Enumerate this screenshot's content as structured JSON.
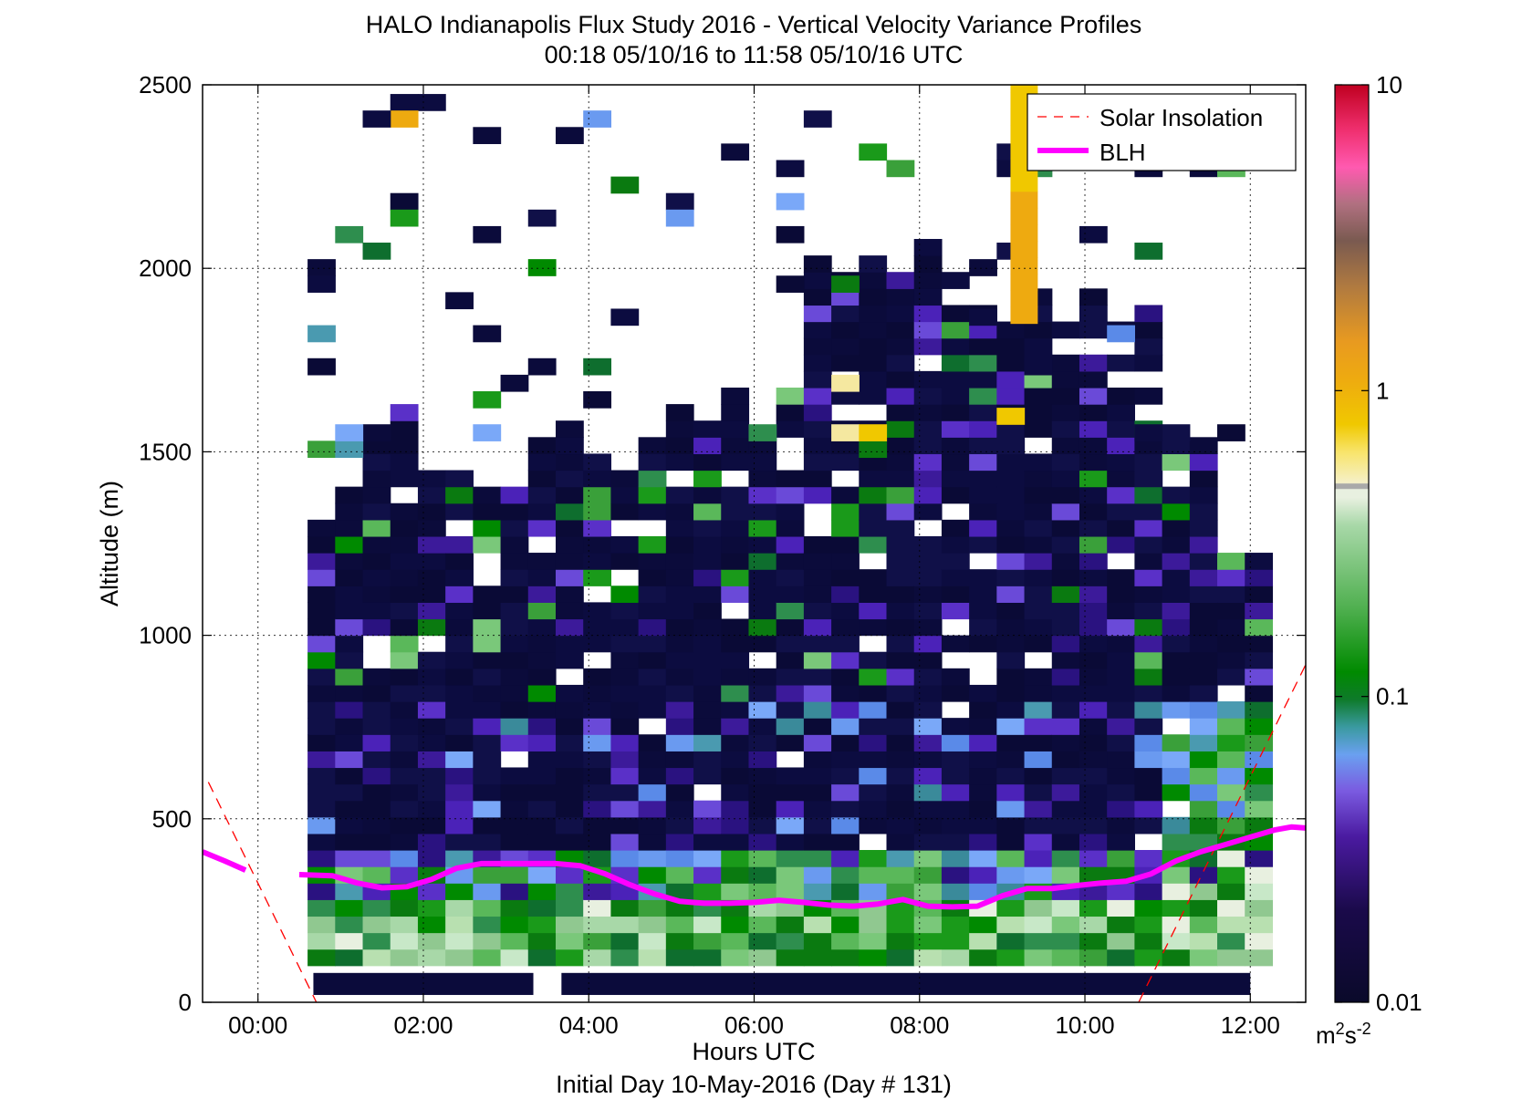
{
  "chart_data": {
    "type": "heatmap",
    "title": "HALO Indianapolis Flux Study 2016 - Vertical Velocity Variance Profiles",
    "subtitle": "00:18 05/10/16 to 11:58 05/10/16  UTC",
    "xlabel": "Hours UTC",
    "xlabel2": "Initial Day 10-May-2016 (Day # 131)",
    "ylabel": "Altitude (m)",
    "xlim": [
      -0.67,
      12.67
    ],
    "ylim": [
      0,
      2500
    ],
    "x_ticks": [
      0,
      2,
      4,
      6,
      8,
      10,
      12
    ],
    "x_tick_labels": [
      "00:00",
      "02:00",
      "04:00",
      "06:00",
      "08:00",
      "10:00",
      "12:00"
    ],
    "y_ticks": [
      0,
      500,
      1000,
      1500,
      2000,
      2500
    ],
    "y_tick_labels": [
      "0",
      "500",
      "1000",
      "1500",
      "2000",
      "2500"
    ],
    "grid": true,
    "legend": {
      "placement": "top-right",
      "entries": [
        {
          "label": "Solar Insolation",
          "color": "#ff0000",
          "style": "dashed"
        },
        {
          "label": "BLH",
          "color": "#ff00ff",
          "style": "solid-thick"
        }
      ]
    },
    "colorbar": {
      "scale": "log",
      "min": 0.01,
      "max": 10,
      "tick_values": [
        0.01,
        0.1,
        1,
        10
      ],
      "tick_labels": [
        "0.01",
        "0.1",
        "1",
        "10"
      ],
      "units": "m²s⁻²"
    },
    "blh": {
      "x": [
        -0.67,
        -0.4,
        -0.15,
        0.5,
        0.9,
        1.2,
        1.5,
        1.8,
        2.1,
        2.4,
        2.7,
        3.0,
        3.3,
        3.6,
        3.9,
        4.2,
        4.5,
        4.8,
        5.1,
        5.4,
        5.7,
        6.0,
        6.3,
        6.6,
        6.9,
        7.2,
        7.5,
        7.8,
        8.1,
        8.4,
        8.7,
        9.0,
        9.3,
        9.6,
        9.9,
        10.2,
        10.5,
        10.8,
        11.1,
        11.4,
        11.7,
        12.0,
        12.3,
        12.5,
        12.67
      ],
      "y": [
        410,
        385,
        360,
        348,
        345,
        325,
        312,
        315,
        335,
        365,
        378,
        378,
        378,
        378,
        372,
        350,
        320,
        295,
        275,
        270,
        270,
        272,
        278,
        272,
        265,
        262,
        268,
        280,
        262,
        260,
        262,
        290,
        310,
        310,
        318,
        325,
        330,
        350,
        385,
        410,
        430,
        450,
        470,
        478,
        475
      ]
    },
    "solar": {
      "segments": [
        {
          "x": [
            -0.6,
            0.75
          ],
          "y": [
            600,
            -20
          ]
        },
        {
          "x": [
            10.65,
            12.67
          ],
          "y": [
            0,
            920
          ]
        }
      ]
    }
  }
}
